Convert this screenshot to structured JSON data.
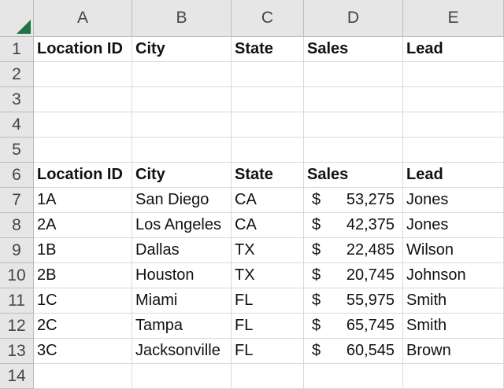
{
  "columns": [
    "A",
    "B",
    "C",
    "D",
    "E"
  ],
  "row_numbers": [
    "1",
    "2",
    "3",
    "4",
    "5",
    "6",
    "7",
    "8",
    "9",
    "10",
    "11",
    "12",
    "13",
    "14"
  ],
  "header_row_1": [
    "Location ID",
    "City",
    "State",
    "Sales",
    "Lead"
  ],
  "header_row_6": [
    "Location ID",
    "City",
    "State",
    "Sales",
    "Lead"
  ],
  "currency_symbol": "$",
  "rows": [
    {
      "location_id": "1A",
      "city": "San Diego",
      "state": "CA",
      "sales": "53,275",
      "lead": "Jones"
    },
    {
      "location_id": "2A",
      "city": "Los Angeles",
      "state": "CA",
      "sales": "42,375",
      "lead": "Jones"
    },
    {
      "location_id": "1B",
      "city": "Dallas",
      "state": "TX",
      "sales": "22,485",
      "lead": "Wilson"
    },
    {
      "location_id": "2B",
      "city": "Houston",
      "state": "TX",
      "sales": "20,745",
      "lead": "Johnson"
    },
    {
      "location_id": "1C",
      "city": "Miami",
      "state": "FL",
      "sales": "55,975",
      "lead": "Smith"
    },
    {
      "location_id": "2C",
      "city": "Tampa",
      "state": "FL",
      "sales": "65,745",
      "lead": "Smith"
    },
    {
      "location_id": "3C",
      "city": "Jacksonville",
      "state": "FL",
      "sales": "60,545",
      "lead": "Brown"
    }
  ],
  "colors": {
    "header_bg": "#e6e6e6",
    "gridline": "#d9d9d9",
    "corner_triangle": "#217346"
  }
}
